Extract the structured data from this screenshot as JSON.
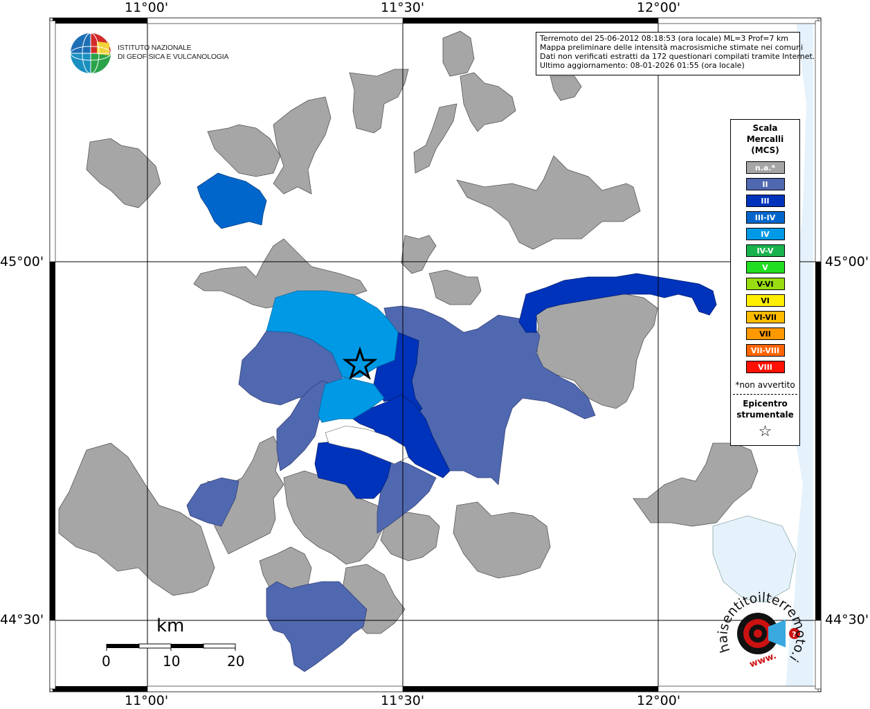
{
  "axes": {
    "lon_labels": [
      "11°00'",
      "11°30'",
      "12°00'"
    ],
    "lat_labels": [
      "45°00'",
      "44°30'"
    ]
  },
  "info": {
    "line1": "Terremoto del 25-06-2012 08:18:53 (ora locale) ML=3 Prof=7 km",
    "line2": "Mappa preliminare delle intensità macrosismiche stimate nei comuni",
    "line3": "Dati non verificati estratti da 172 questionari compilati tramite Internet.",
    "line4": "Ultimo aggiornamento: 08-01-2026 01:55 (ora locale)"
  },
  "legend": {
    "title1": "Scala",
    "title2": "Mercalli",
    "title3": "(MCS)",
    "items": [
      {
        "label": "n.a.*",
        "color": "#a6a6a6"
      },
      {
        "label": "II",
        "color": "#4f68b0"
      },
      {
        "label": "III",
        "color": "#0033bb"
      },
      {
        "label": "III-IV",
        "color": "#0066cc"
      },
      {
        "label": "IV",
        "color": "#0099e6"
      },
      {
        "label": "IV-V",
        "color": "#19b34d"
      },
      {
        "label": "V",
        "color": "#22dd22"
      },
      {
        "label": "V-VI",
        "color": "#99dd11"
      },
      {
        "label": "VI",
        "color": "#ffee00"
      },
      {
        "label": "VI-VII",
        "color": "#ffbb00"
      },
      {
        "label": "VII",
        "color": "#ff9900"
      },
      {
        "label": "VII-VIII",
        "color": "#ff6600"
      },
      {
        "label": "VIII",
        "color": "#ff1100"
      }
    ],
    "note": "*non avvertito",
    "epicenter1": "Epicentro",
    "epicenter2": "strumentale",
    "epicenter_symbol": "☆"
  },
  "logo": {
    "line1": "ISTITUTO NAZIONALE",
    "line2": "DI GEOFISICA E VULCANOLOGIA"
  },
  "scale_bar": {
    "unit": "km",
    "ticks": [
      "0",
      "10",
      "20"
    ]
  },
  "site_logo": {
    "text": "haisentitoilterremoto.it",
    "prefix": "www."
  },
  "colors": {
    "na": "#a6a6a6",
    "II": "#4f68b0",
    "III": "#0033bb",
    "III-IV": "#0066cc",
    "IV": "#0099e6",
    "sea": "#e6f2fb"
  }
}
